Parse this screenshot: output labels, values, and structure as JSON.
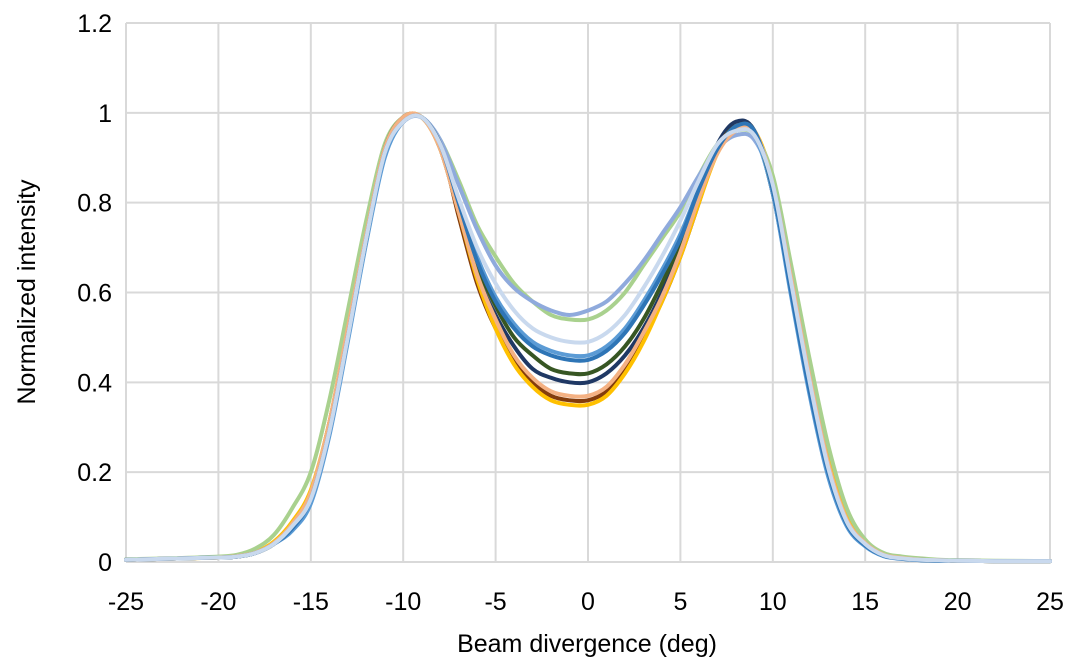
{
  "chart_data": {
    "type": "line",
    "title": "",
    "xlabel": "Beam divergence (deg)",
    "ylabel": "Normalized intensity",
    "xlim": [
      -25,
      25
    ],
    "ylim": [
      0,
      1.2
    ],
    "xticks": [
      -25,
      -20,
      -15,
      -10,
      -5,
      0,
      5,
      10,
      15,
      20,
      25
    ],
    "yticks": [
      0,
      0.2,
      0.4,
      0.6,
      0.8,
      1,
      1.2
    ],
    "ytick_labels": [
      "0",
      "0.2",
      "0.4",
      "0.6",
      "0.8",
      "1",
      "1.2"
    ],
    "grid": true,
    "legend": "none",
    "x": [
      -25,
      -22,
      -20,
      -19,
      -18,
      -17,
      -16,
      -15,
      -14,
      -13,
      -12,
      -11,
      -10,
      -9,
      -8,
      -7,
      -6,
      -5,
      -4,
      -3,
      -2,
      -1,
      0,
      1,
      2,
      3,
      4,
      5,
      6,
      7,
      8,
      9,
      10,
      11,
      12,
      13,
      14,
      15,
      16,
      17,
      18,
      19,
      20,
      22,
      25
    ],
    "series": [
      {
        "color": "#1f3864",
        "values": [
          0.005,
          0.008,
          0.01,
          0.012,
          0.02,
          0.04,
          0.08,
          0.15,
          0.3,
          0.5,
          0.72,
          0.92,
          0.98,
          0.99,
          0.92,
          0.78,
          0.64,
          0.55,
          0.48,
          0.43,
          0.41,
          0.4,
          0.4,
          0.42,
          0.46,
          0.52,
          0.6,
          0.7,
          0.82,
          0.93,
          0.98,
          0.96,
          0.82,
          0.6,
          0.38,
          0.2,
          0.09,
          0.04,
          0.015,
          0.008,
          0.005,
          0.004,
          0.003,
          0.002,
          0.002
        ]
      },
      {
        "color": "#843c0c",
        "values": [
          0.005,
          0.008,
          0.01,
          0.012,
          0.02,
          0.04,
          0.08,
          0.15,
          0.31,
          0.51,
          0.73,
          0.92,
          0.99,
          0.99,
          0.93,
          0.77,
          0.62,
          0.52,
          0.45,
          0.4,
          0.37,
          0.36,
          0.36,
          0.38,
          0.43,
          0.5,
          0.58,
          0.68,
          0.8,
          0.92,
          0.97,
          0.96,
          0.83,
          0.61,
          0.39,
          0.21,
          0.09,
          0.04,
          0.015,
          0.008,
          0.005,
          0.004,
          0.003,
          0.002,
          0.002
        ]
      },
      {
        "color": "#ffc000",
        "values": [
          0.005,
          0.008,
          0.01,
          0.014,
          0.022,
          0.045,
          0.09,
          0.16,
          0.31,
          0.52,
          0.73,
          0.92,
          0.99,
          0.99,
          0.92,
          0.78,
          0.63,
          0.52,
          0.44,
          0.39,
          0.36,
          0.35,
          0.35,
          0.37,
          0.42,
          0.49,
          0.58,
          0.68,
          0.8,
          0.91,
          0.96,
          0.96,
          0.85,
          0.64,
          0.42,
          0.23,
          0.1,
          0.045,
          0.018,
          0.01,
          0.006,
          0.004,
          0.003,
          0.002,
          0.002
        ]
      },
      {
        "color": "#a9d18e",
        "values": [
          0.006,
          0.009,
          0.012,
          0.016,
          0.03,
          0.06,
          0.12,
          0.2,
          0.36,
          0.56,
          0.76,
          0.93,
          0.99,
          0.99,
          0.94,
          0.85,
          0.75,
          0.68,
          0.62,
          0.58,
          0.55,
          0.54,
          0.54,
          0.56,
          0.6,
          0.66,
          0.72,
          0.78,
          0.86,
          0.93,
          0.96,
          0.95,
          0.86,
          0.66,
          0.45,
          0.26,
          0.12,
          0.05,
          0.02,
          0.012,
          0.008,
          0.005,
          0.004,
          0.003,
          0.002
        ]
      },
      {
        "color": "#8faadc",
        "values": [
          0.005,
          0.008,
          0.01,
          0.012,
          0.02,
          0.04,
          0.08,
          0.14,
          0.29,
          0.5,
          0.72,
          0.91,
          0.98,
          0.99,
          0.94,
          0.84,
          0.74,
          0.66,
          0.61,
          0.58,
          0.56,
          0.55,
          0.56,
          0.58,
          0.62,
          0.67,
          0.73,
          0.79,
          0.86,
          0.92,
          0.95,
          0.94,
          0.84,
          0.63,
          0.41,
          0.22,
          0.09,
          0.04,
          0.015,
          0.008,
          0.005,
          0.004,
          0.003,
          0.002,
          0.002
        ]
      },
      {
        "color": "#5b9bd5",
        "values": [
          0.005,
          0.008,
          0.01,
          0.012,
          0.02,
          0.04,
          0.07,
          0.13,
          0.28,
          0.49,
          0.71,
          0.9,
          0.98,
          0.99,
          0.93,
          0.8,
          0.68,
          0.59,
          0.53,
          0.49,
          0.47,
          0.46,
          0.46,
          0.48,
          0.52,
          0.58,
          0.65,
          0.73,
          0.83,
          0.92,
          0.96,
          0.95,
          0.82,
          0.59,
          0.37,
          0.19,
          0.08,
          0.035,
          0.013,
          0.007,
          0.004,
          0.003,
          0.003,
          0.002,
          0.002
        ]
      },
      {
        "color": "#375623",
        "values": [
          0.005,
          0.008,
          0.01,
          0.012,
          0.02,
          0.04,
          0.08,
          0.15,
          0.3,
          0.51,
          0.72,
          0.92,
          0.99,
          0.99,
          0.93,
          0.79,
          0.66,
          0.57,
          0.5,
          0.46,
          0.43,
          0.42,
          0.42,
          0.44,
          0.48,
          0.54,
          0.62,
          0.71,
          0.82,
          0.92,
          0.97,
          0.96,
          0.83,
          0.61,
          0.39,
          0.21,
          0.09,
          0.04,
          0.015,
          0.008,
          0.005,
          0.004,
          0.003,
          0.002,
          0.002
        ]
      },
      {
        "color": "#f4b183",
        "values": [
          0.005,
          0.008,
          0.01,
          0.013,
          0.021,
          0.042,
          0.085,
          0.155,
          0.31,
          0.52,
          0.73,
          0.92,
          0.99,
          0.99,
          0.92,
          0.78,
          0.64,
          0.54,
          0.46,
          0.41,
          0.38,
          0.37,
          0.37,
          0.39,
          0.44,
          0.51,
          0.59,
          0.69,
          0.81,
          0.91,
          0.96,
          0.96,
          0.84,
          0.63,
          0.41,
          0.22,
          0.095,
          0.042,
          0.016,
          0.009,
          0.005,
          0.004,
          0.003,
          0.002,
          0.002
        ]
      },
      {
        "color": "#2e75b6",
        "values": [
          0.005,
          0.008,
          0.01,
          0.012,
          0.02,
          0.04,
          0.075,
          0.14,
          0.29,
          0.5,
          0.72,
          0.91,
          0.98,
          0.99,
          0.93,
          0.8,
          0.67,
          0.58,
          0.52,
          0.48,
          0.46,
          0.45,
          0.45,
          0.47,
          0.51,
          0.57,
          0.64,
          0.72,
          0.83,
          0.92,
          0.97,
          0.96,
          0.83,
          0.6,
          0.38,
          0.2,
          0.085,
          0.037,
          0.014,
          0.007,
          0.004,
          0.003,
          0.003,
          0.002,
          0.002
        ]
      },
      {
        "color": "#c9d9ee",
        "values": [
          0.005,
          0.008,
          0.01,
          0.012,
          0.02,
          0.04,
          0.08,
          0.14,
          0.29,
          0.5,
          0.72,
          0.91,
          0.98,
          0.99,
          0.93,
          0.81,
          0.7,
          0.62,
          0.56,
          0.52,
          0.5,
          0.49,
          0.49,
          0.51,
          0.55,
          0.61,
          0.68,
          0.76,
          0.85,
          0.93,
          0.96,
          0.95,
          0.84,
          0.62,
          0.4,
          0.21,
          0.09,
          0.04,
          0.015,
          0.008,
          0.005,
          0.004,
          0.003,
          0.002,
          0.002
        ]
      }
    ]
  }
}
